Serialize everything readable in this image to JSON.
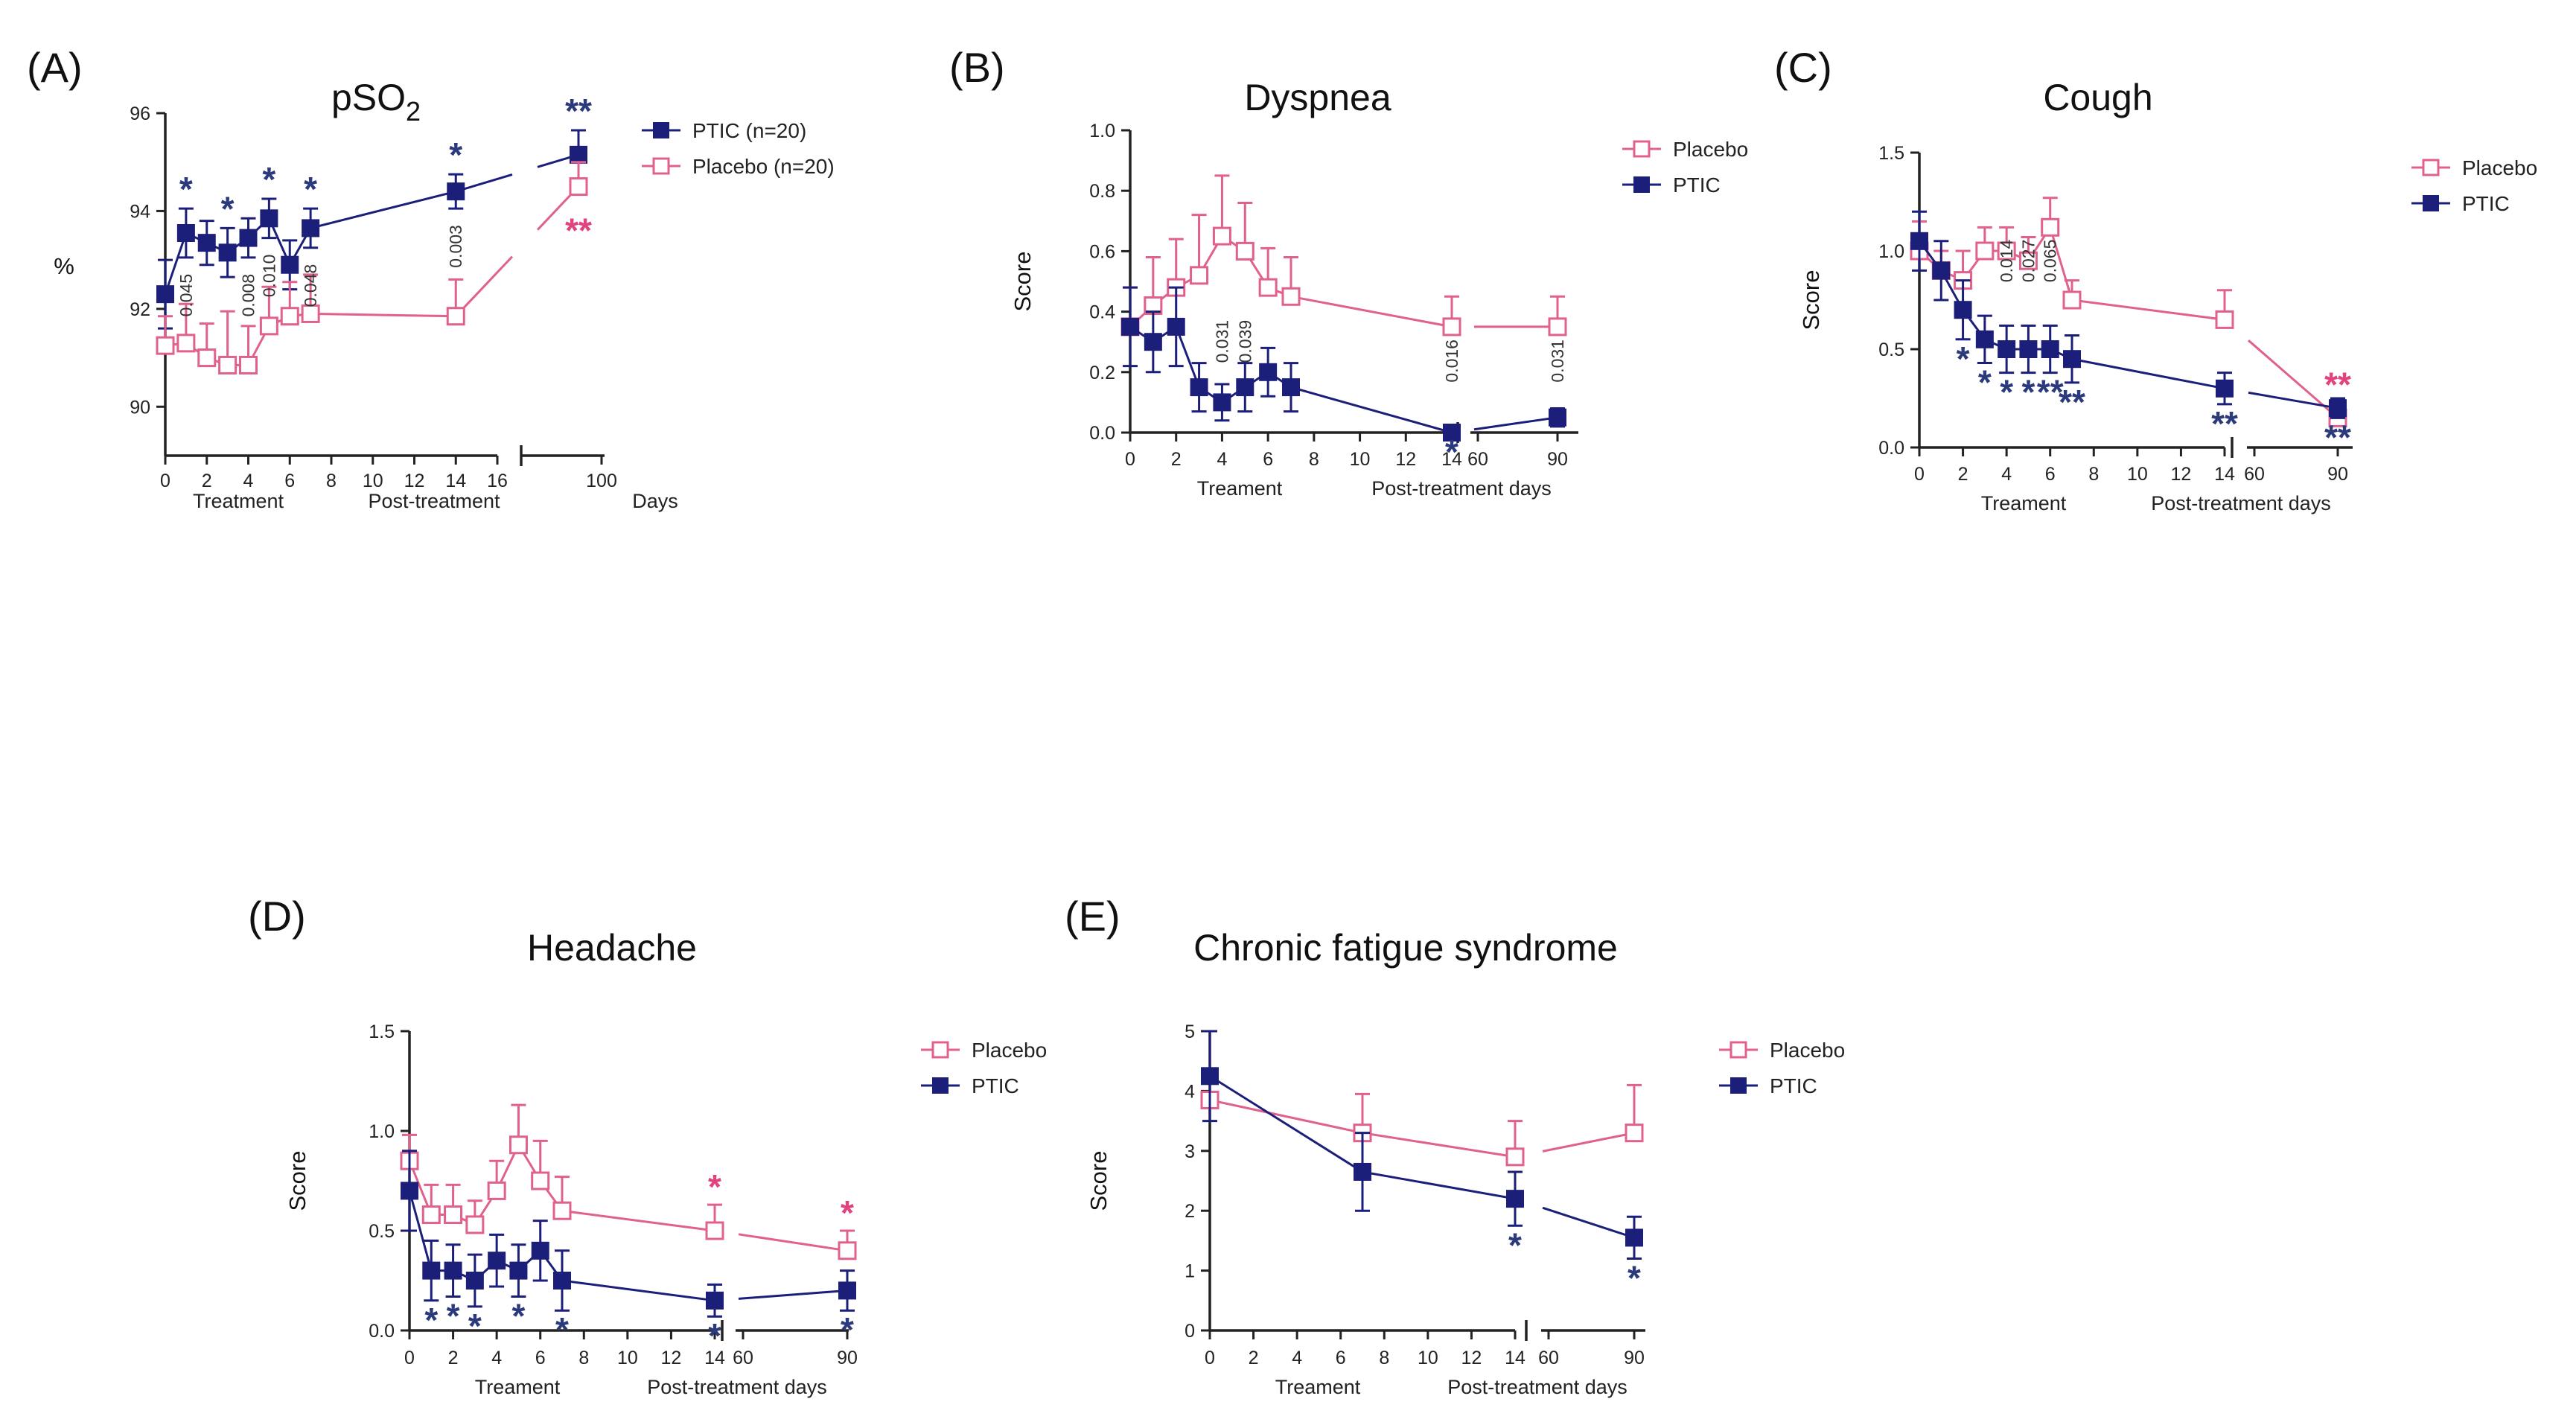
{
  "chart_data": [
    {
      "panel": "(A)",
      "type": "line",
      "title": "pSO",
      "title_sub": "2",
      "ylabel": "%",
      "xlabel": "Days",
      "x_groups": [
        "Treatment",
        "Post-treatment"
      ],
      "ylim": [
        89,
        96
      ],
      "x_ticks": [
        0,
        2,
        4,
        6,
        8,
        10,
        12,
        14,
        16
      ],
      "x_ticks_post": [
        100
      ],
      "y_ticks": [
        90,
        92,
        94,
        96
      ],
      "legend": [
        "PTIC (n=20)",
        "Placebo (n=20)"
      ],
      "series": [
        {
          "name": "PTIC (n=20)",
          "color": "#1b1f7a",
          "filled": true,
          "x": [
            0,
            1,
            2,
            3,
            4,
            5,
            6,
            7,
            14,
            100
          ],
          "y": [
            92.3,
            93.55,
            93.35,
            93.15,
            93.45,
            93.85,
            92.9,
            93.65,
            94.4,
            95.15
          ],
          "err": [
            0.7,
            0.5,
            0.45,
            0.5,
            0.4,
            0.4,
            0.5,
            0.4,
            0.35,
            0.5
          ]
        },
        {
          "name": "Placebo (n=20)",
          "color": "#e0608e",
          "filled": false,
          "x": [
            0,
            1,
            2,
            3,
            4,
            5,
            6,
            7,
            14,
            100
          ],
          "y": [
            91.25,
            91.3,
            91.0,
            90.85,
            90.85,
            91.65,
            91.85,
            91.9,
            91.85,
            94.5
          ],
          "err": [
            0.6,
            0.8,
            0.7,
            1.1,
            0.8,
            0.8,
            0.7,
            0.8,
            0.75,
            0.5
          ]
        }
      ],
      "annotations": [
        {
          "x": 1,
          "text": "0.045"
        },
        {
          "x": 4,
          "text": "0.008"
        },
        {
          "x": 5,
          "text": "0.010"
        },
        {
          "x": 7,
          "text": "0.048"
        },
        {
          "x": 14,
          "text": "0.003"
        }
      ],
      "stars_ptic": [
        {
          "x": 1,
          "text": "*"
        },
        {
          "x": 3,
          "text": "*"
        },
        {
          "x": 5,
          "text": "*"
        },
        {
          "x": 7,
          "text": "*"
        },
        {
          "x": 14,
          "text": "*"
        },
        {
          "x": 100,
          "text": "**"
        }
      ],
      "stars_placebo": [
        {
          "x": 100,
          "text": "**"
        }
      ]
    },
    {
      "panel": "(B)",
      "type": "line",
      "title": "Dyspnea",
      "ylabel": "Score",
      "x_groups": [
        "Treament",
        "Post-treatment days"
      ],
      "ylim": [
        0,
        1.0
      ],
      "x_ticks": [
        0,
        2,
        4,
        6,
        8,
        10,
        12,
        14
      ],
      "x_ticks_post": [
        60,
        90
      ],
      "y_ticks": [
        "0.0",
        "0.2",
        "0.4",
        "0.6",
        "0.8",
        "1.0"
      ],
      "legend": [
        "Placebo",
        "PTIC"
      ],
      "series": [
        {
          "name": "Placebo",
          "color": "#e0608e",
          "filled": false,
          "x": [
            0,
            1,
            2,
            3,
            4,
            5,
            6,
            7,
            14,
            90
          ],
          "y": [
            0.35,
            0.42,
            0.48,
            0.52,
            0.65,
            0.6,
            0.48,
            0.45,
            0.35,
            0.35
          ],
          "err": [
            0.13,
            0.16,
            0.16,
            0.2,
            0.2,
            0.16,
            0.13,
            0.13,
            0.1,
            0.1
          ]
        },
        {
          "name": "PTIC",
          "color": "#1b1f7a",
          "filled": true,
          "x": [
            0,
            1,
            2,
            3,
            4,
            5,
            6,
            7,
            14,
            90
          ],
          "y": [
            0.35,
            0.3,
            0.35,
            0.15,
            0.1,
            0.15,
            0.2,
            0.15,
            0.0,
            0.05
          ],
          "err": [
            0.13,
            0.1,
            0.13,
            0.08,
            0.06,
            0.08,
            0.08,
            0.08,
            0.0,
            0.03
          ]
        }
      ],
      "annotations": [
        {
          "x": 4,
          "text": "0.031"
        },
        {
          "x": 5,
          "text": "0.039"
        },
        {
          "x": 14,
          "text": "0.016"
        },
        {
          "x": 90,
          "text": "0.031"
        }
      ],
      "stars_ptic": [
        {
          "x": 14,
          "text": "*"
        }
      ],
      "stars_placebo": []
    },
    {
      "panel": "(C)",
      "type": "line",
      "title": "Cough",
      "ylabel": "Score",
      "x_groups": [
        "Treament",
        "Post-treatment days"
      ],
      "ylim": [
        0,
        1.5
      ],
      "x_ticks": [
        0,
        2,
        4,
        6,
        8,
        10,
        12,
        14
      ],
      "x_ticks_post": [
        60,
        90
      ],
      "y_ticks": [
        "0.0",
        "0.5",
        "1.0",
        "1.5"
      ],
      "legend": [
        "Placebo",
        "PTIC"
      ],
      "series": [
        {
          "name": "Placebo",
          "color": "#e0608e",
          "filled": false,
          "x": [
            0,
            1,
            2,
            3,
            4,
            5,
            6,
            7,
            14,
            90
          ],
          "y": [
            1.0,
            0.9,
            0.85,
            1.0,
            1.0,
            0.95,
            1.12,
            0.75,
            0.65,
            0.15
          ],
          "err": [
            0.15,
            0.1,
            0.15,
            0.12,
            0.12,
            0.12,
            0.15,
            0.1,
            0.15,
            0.08
          ]
        },
        {
          "name": "PTIC",
          "color": "#1b1f7a",
          "filled": true,
          "x": [
            0,
            1,
            2,
            3,
            4,
            5,
            6,
            7,
            14,
            90
          ],
          "y": [
            1.05,
            0.9,
            0.7,
            0.55,
            0.5,
            0.5,
            0.5,
            0.45,
            0.3,
            0.2
          ],
          "err": [
            0.15,
            0.15,
            0.15,
            0.12,
            0.12,
            0.12,
            0.12,
            0.12,
            0.08,
            0.05
          ]
        }
      ],
      "annotations": [
        {
          "x": 4,
          "text": "0.014"
        },
        {
          "x": 5,
          "text": "0.027"
        },
        {
          "x": 6,
          "text": "0.065"
        }
      ],
      "stars_ptic": [
        {
          "x": 2,
          "text": "*"
        },
        {
          "x": 3,
          "text": "*"
        },
        {
          "x": 4,
          "text": "*"
        },
        {
          "x": 5,
          "text": "*"
        },
        {
          "x": 6,
          "text": "**"
        },
        {
          "x": 7,
          "text": "**"
        },
        {
          "x": 14,
          "text": "**"
        },
        {
          "x": 90,
          "text": "**"
        }
      ],
      "stars_placebo": [
        {
          "x": 90,
          "text": "**"
        }
      ]
    },
    {
      "panel": "(D)",
      "type": "line",
      "title": "Headache",
      "ylabel": "Score",
      "x_groups": [
        "Treament",
        "Post-treatment days"
      ],
      "ylim": [
        0,
        1.5
      ],
      "x_ticks": [
        0,
        2,
        4,
        6,
        8,
        10,
        12,
        14
      ],
      "x_ticks_post": [
        60,
        90
      ],
      "y_ticks": [
        "0.0",
        "0.5",
        "1.0",
        "1.5"
      ],
      "legend": [
        "Placebo",
        "PTIC"
      ],
      "series": [
        {
          "name": "Placebo",
          "color": "#e0608e",
          "filled": false,
          "x": [
            0,
            1,
            2,
            3,
            4,
            5,
            6,
            7,
            14,
            90
          ],
          "y": [
            0.85,
            0.58,
            0.58,
            0.53,
            0.7,
            0.93,
            0.75,
            0.6,
            0.5,
            0.4
          ],
          "err": [
            0.13,
            0.15,
            0.15,
            0.12,
            0.15,
            0.2,
            0.2,
            0.17,
            0.13,
            0.1
          ]
        },
        {
          "name": "PTIC",
          "color": "#1b1f7a",
          "filled": true,
          "x": [
            0,
            1,
            2,
            3,
            4,
            5,
            6,
            7,
            14,
            90
          ],
          "y": [
            0.7,
            0.3,
            0.3,
            0.25,
            0.35,
            0.3,
            0.4,
            0.25,
            0.15,
            0.2
          ],
          "err": [
            0.2,
            0.15,
            0.13,
            0.13,
            0.13,
            0.13,
            0.15,
            0.15,
            0.08,
            0.1
          ]
        }
      ],
      "annotations": [],
      "stars_ptic": [
        {
          "x": 1,
          "text": "*"
        },
        {
          "x": 2,
          "text": "*"
        },
        {
          "x": 3,
          "text": "*"
        },
        {
          "x": 5,
          "text": "*"
        },
        {
          "x": 7,
          "text": "*"
        },
        {
          "x": 14,
          "text": "*"
        },
        {
          "x": 90,
          "text": "*"
        }
      ],
      "stars_placebo": [
        {
          "x": 14,
          "text": "*"
        },
        {
          "x": 90,
          "text": "*"
        }
      ]
    },
    {
      "panel": "(E)",
      "type": "line",
      "title": "Chronic fatigue syndrome",
      "ylabel": "Score",
      "x_groups": [
        "Treament",
        "Post-treatment days"
      ],
      "ylim": [
        0,
        5
      ],
      "x_ticks": [
        0,
        2,
        4,
        6,
        8,
        10,
        12,
        14
      ],
      "x_ticks_post": [
        60,
        90
      ],
      "y_ticks": [
        "0",
        "1",
        "2",
        "3",
        "4",
        "5"
      ],
      "legend": [
        "Placebo",
        "PTIC"
      ],
      "series": [
        {
          "name": "Placebo",
          "color": "#e0608e",
          "filled": false,
          "x": [
            0,
            7,
            14,
            90
          ],
          "y": [
            3.85,
            3.3,
            2.9,
            3.3
          ],
          "err": [
            0.35,
            0.65,
            0.6,
            0.8
          ]
        },
        {
          "name": "PTIC",
          "color": "#1b1f7a",
          "filled": true,
          "x": [
            0,
            7,
            14,
            90
          ],
          "y": [
            4.25,
            2.65,
            2.2,
            1.55
          ],
          "err": [
            0.75,
            0.65,
            0.45,
            0.35
          ]
        }
      ],
      "annotations": [],
      "stars_ptic": [
        {
          "x": 14,
          "text": "*"
        },
        {
          "x": 90,
          "text": "*"
        }
      ],
      "stars_placebo": []
    }
  ]
}
